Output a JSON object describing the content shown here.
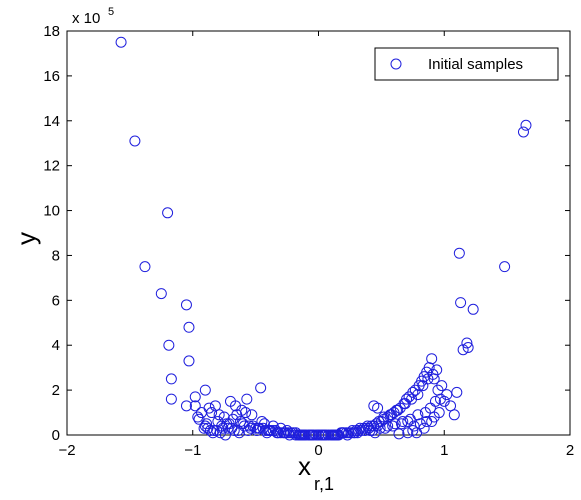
{
  "chart_data": {
    "type": "scatter",
    "xlabel": "x",
    "xlabel_subscript": "r,1",
    "ylabel": "y",
    "exponent_label": "x 10",
    "exponent_power": "5",
    "xlim": [
      -2,
      2
    ],
    "ylim": [
      0,
      18
    ],
    "xticks": [
      "−2",
      "−1",
      "0",
      "1",
      "2"
    ],
    "yticks": [
      "0",
      "2",
      "4",
      "6",
      "8",
      "10",
      "12",
      "14",
      "16",
      "18"
    ],
    "legend": {
      "position": "top-right"
    },
    "grid": false,
    "series": [
      {
        "name": "Initial samples",
        "color": "#1f1fdd",
        "marker": "open-circle",
        "x": [
          -1.57,
          -1.46,
          -1.38,
          -1.25,
          -1.2,
          -1.19,
          -1.17,
          -1.17,
          -1.05,
          -1.03,
          -1.03,
          -1.05,
          -0.98,
          -0.98,
          -0.91,
          -0.89,
          -0.9,
          -0.87,
          -0.85,
          -0.82,
          -0.79,
          -0.93,
          -0.96,
          -0.75,
          -0.71,
          -0.68,
          -0.65,
          -0.62,
          -0.6,
          -0.57,
          -0.55,
          -0.52,
          -0.5,
          -0.48,
          -0.46,
          -0.44,
          -0.42,
          -0.4,
          -0.38,
          -0.36,
          -0.34,
          -0.32,
          -0.3,
          -0.28,
          -0.26,
          -0.24,
          -0.22,
          -0.2,
          -0.18,
          -0.16,
          -0.14,
          -0.12,
          -0.1,
          -0.08,
          -0.06,
          -0.04,
          -0.02,
          0.0,
          0.02,
          0.04,
          0.06,
          0.08,
          0.1,
          0.12,
          0.14,
          0.16,
          0.18,
          0.2,
          0.22,
          0.24,
          0.26,
          0.28,
          0.3,
          0.32,
          0.34,
          0.36,
          0.38,
          0.4,
          0.42,
          0.44,
          0.46,
          0.48,
          0.5,
          0.52,
          0.55,
          0.58,
          0.6,
          0.62,
          0.65,
          0.68,
          0.7,
          0.72,
          0.75,
          0.77,
          0.8,
          0.82,
          0.84,
          0.86,
          0.88,
          0.9,
          0.92,
          0.95,
          0.97,
          1.0,
          1.02,
          1.05,
          1.1,
          1.12,
          1.13,
          1.15,
          1.18,
          1.19,
          1.23,
          1.48,
          1.63,
          1.65,
          -0.7,
          -0.66,
          -0.61,
          -0.58,
          -0.53,
          -0.45,
          -0.43,
          -0.36,
          -0.3,
          -0.25,
          -0.18,
          -0.11,
          -0.05,
          0.05,
          0.11,
          0.19,
          0.27,
          0.33,
          0.39,
          0.44,
          0.47,
          0.52,
          0.57,
          0.63,
          0.69,
          0.74,
          0.79,
          0.83,
          0.87,
          0.91,
          0.94,
          0.98,
          -0.8,
          -0.77,
          -0.73,
          -0.69,
          -0.64,
          -0.59,
          -0.54,
          -0.49,
          -0.41,
          -0.33,
          -0.23,
          -0.15,
          -0.07,
          0.03,
          0.13,
          0.23,
          0.31,
          0.37,
          0.43,
          0.49,
          0.55,
          0.61,
          0.67,
          0.73,
          0.79,
          0.85,
          0.89,
          0.93,
          -0.86,
          -0.84,
          -0.81,
          -0.76,
          -0.72,
          -0.67,
          -0.63,
          -0.56,
          -0.47,
          -0.39,
          -0.27,
          -0.13,
          0.0,
          0.15,
          0.29,
          0.41,
          0.47,
          0.53,
          0.59,
          0.66,
          0.71,
          0.76,
          0.81,
          0.86,
          0.92,
          0.96,
          -0.95,
          -0.9,
          -0.88,
          -0.83,
          -0.78,
          -0.74,
          1.08,
          0.9,
          0.84,
          0.78,
          0.75,
          0.71,
          0.64,
          0.45
        ],
        "y": [
          17.5,
          13.1,
          7.5,
          6.3,
          9.9,
          4.0,
          2.5,
          1.6,
          5.8,
          4.8,
          3.3,
          1.3,
          1.7,
          1.3,
          0.3,
          0.5,
          2.0,
          1.2,
          1.0,
          1.3,
          0.9,
          1.0,
          0.8,
          0.8,
          0.5,
          0.7,
          0.9,
          0.6,
          0.5,
          1.6,
          0.4,
          0.4,
          0.3,
          0.3,
          2.1,
          0.3,
          0.2,
          0.2,
          0.2,
          0.2,
          0.2,
          0.1,
          0.1,
          0.1,
          0.1,
          0.1,
          0.1,
          0.1,
          0.0,
          0.0,
          0.0,
          0.0,
          0.0,
          0.0,
          0.0,
          0.0,
          0.0,
          0.0,
          0.0,
          0.0,
          0.0,
          0.0,
          0.0,
          0.0,
          0.0,
          0.0,
          0.1,
          0.1,
          0.1,
          0.1,
          0.1,
          0.1,
          0.2,
          0.2,
          0.2,
          0.3,
          0.3,
          0.3,
          0.4,
          0.4,
          0.5,
          0.6,
          0.6,
          0.7,
          0.8,
          0.9,
          1.0,
          1.1,
          1.2,
          1.4,
          1.6,
          1.7,
          1.9,
          2.0,
          2.2,
          2.4,
          2.6,
          2.8,
          3.0,
          3.4,
          2.5,
          2.0,
          1.6,
          1.5,
          1.8,
          1.3,
          1.9,
          8.1,
          5.9,
          3.8,
          4.1,
          3.9,
          5.6,
          7.5,
          13.5,
          13.8,
          1.5,
          1.3,
          1.1,
          1.0,
          0.9,
          0.6,
          0.5,
          0.4,
          0.3,
          0.2,
          0.1,
          0.0,
          0.0,
          0.0,
          0.0,
          0.1,
          0.2,
          0.3,
          0.4,
          1.3,
          1.2,
          0.8,
          0.9,
          1.1,
          1.4,
          1.6,
          1.8,
          2.2,
          2.5,
          2.7,
          2.9,
          2.2,
          0.6,
          0.4,
          0.5,
          0.3,
          0.2,
          0.4,
          0.3,
          0.2,
          0.1,
          0.1,
          0.0,
          0.0,
          0.0,
          0.0,
          0.0,
          0.0,
          0.1,
          0.2,
          0.2,
          0.3,
          0.4,
          0.5,
          0.6,
          0.7,
          0.9,
          1.0,
          1.2,
          1.5,
          0.2,
          0.1,
          0.2,
          0.3,
          0.3,
          0.2,
          0.1,
          0.2,
          0.3,
          0.2,
          0.1,
          0.0,
          0.0,
          0.0,
          0.1,
          0.2,
          0.4,
          0.3,
          0.4,
          0.5,
          0.6,
          0.4,
          0.5,
          0.6,
          0.8,
          1.0,
          0.7,
          0.4,
          0.3,
          0.2,
          0.1,
          0.0,
          0.9,
          0.6,
          0.3,
          0.1,
          0.2,
          0.1,
          0.05,
          0.1
        ]
      }
    ]
  }
}
